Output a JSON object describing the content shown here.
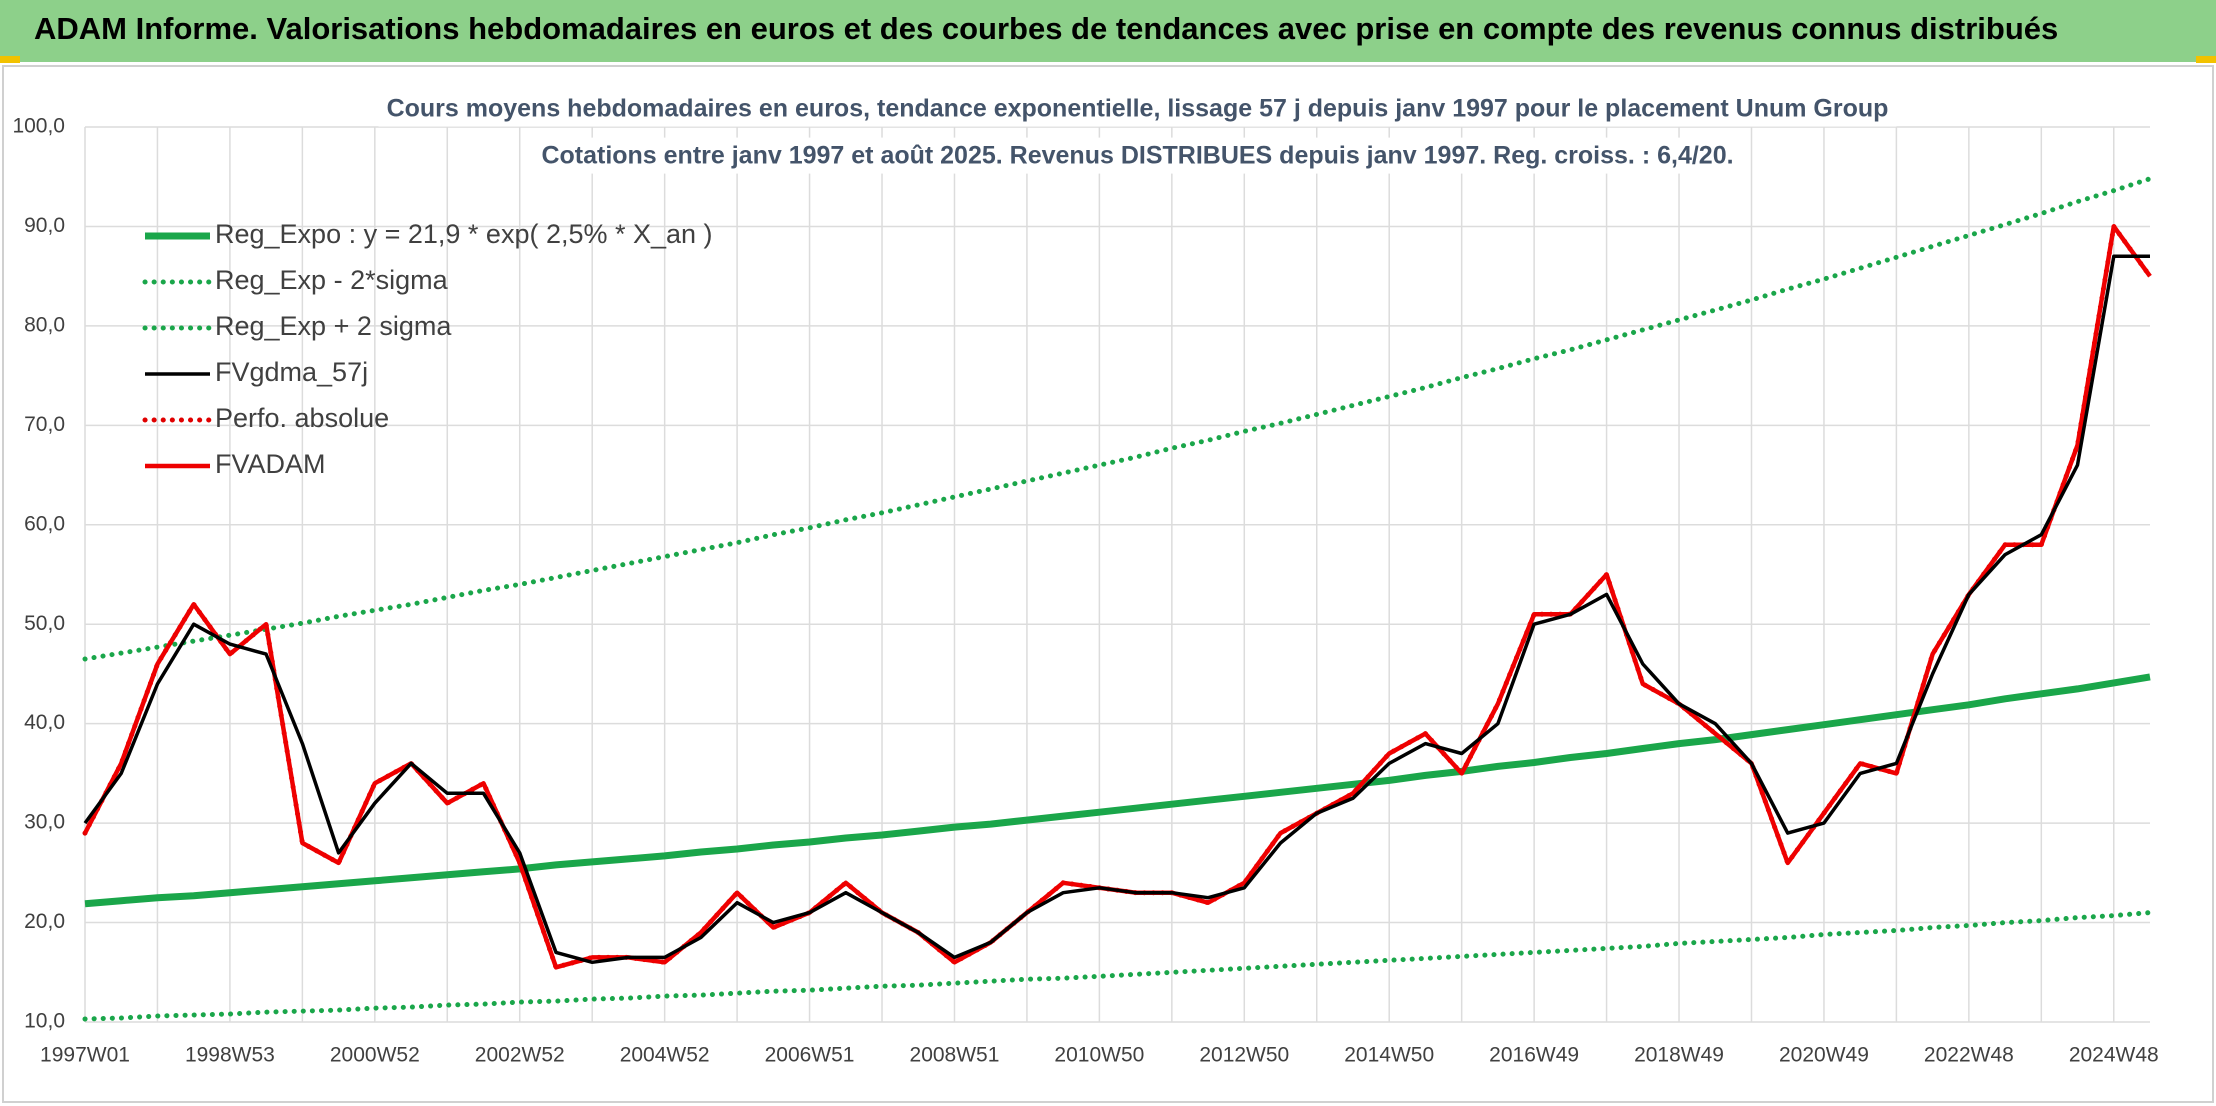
{
  "header": {
    "title": "ADAM Informe. Valorisations hebdomadaires en euros et des courbes de tendances avec prise en compte des revenus connus distribués"
  },
  "chart_data": {
    "type": "line",
    "title": "Cours moyens hebdomadaires en euros, tendance exponentielle, lissage 57 j depuis janv 1997 pour le placement Unum Group",
    "subtitle": "Cotations entre janv 1997 et août 2025. Revenus DISTRIBUES depuis janv 1997. Reg. croiss. : 6,4/20.",
    "categories": [
      "1997W01",
      null,
      null,
      null,
      "1998W53",
      null,
      null,
      null,
      "2000W52",
      null,
      null,
      null,
      "2002W52",
      null,
      null,
      null,
      "2004W52",
      null,
      null,
      null,
      "2006W51",
      null,
      null,
      null,
      "2008W51",
      null,
      null,
      null,
      "2010W50",
      null,
      null,
      null,
      "2012W50",
      null,
      null,
      null,
      "2014W50",
      null,
      null,
      null,
      "2016W49",
      null,
      null,
      null,
      "2018W49",
      null,
      null,
      null,
      "2020W49",
      null,
      null,
      null,
      "2022W48",
      null,
      null,
      null,
      "2024W48",
      null
    ],
    "ylim": [
      10,
      100
    ],
    "yticks": [
      {
        "value": 10,
        "label": "10,0"
      },
      {
        "value": 20,
        "label": "20,0"
      },
      {
        "value": 30,
        "label": "30,0"
      },
      {
        "value": 40,
        "label": "40,0"
      },
      {
        "value": 50,
        "label": "50,0"
      },
      {
        "value": 60,
        "label": "60,0"
      },
      {
        "value": 70,
        "label": "70,0"
      },
      {
        "value": 80,
        "label": "80,0"
      },
      {
        "value": 90,
        "label": "90,0"
      },
      {
        "value": 100,
        "label": "100,0"
      }
    ],
    "grid": true,
    "legend": "top-left",
    "series": [
      {
        "name": "Reg_Expo : y = 21,9 * exp( 2,5% *  X_an )",
        "color": "#1aa64a",
        "line_style": "solid",
        "values": [
          21.9,
          22.2,
          22.5,
          22.7,
          23.0,
          23.3,
          23.6,
          23.9,
          24.2,
          24.5,
          24.8,
          25.1,
          25.4,
          25.8,
          26.1,
          26.4,
          26.7,
          27.1,
          27.4,
          27.8,
          28.1,
          28.5,
          28.8,
          29.2,
          29.6,
          29.9,
          30.3,
          30.7,
          31.1,
          31.5,
          31.9,
          32.3,
          32.7,
          33.1,
          33.5,
          33.9,
          34.3,
          34.8,
          35.2,
          35.7,
          36.1,
          36.6,
          37.0,
          37.5,
          38.0,
          38.4,
          38.9,
          39.4,
          39.9,
          40.4,
          40.9,
          41.4,
          41.9,
          42.5,
          43.0,
          43.5,
          44.1,
          44.7
        ]
      },
      {
        "name": "Reg_Exp - 2*sigma",
        "color": "#1aa64a",
        "line_style": "dotted",
        "values": [
          10.3,
          10.4,
          10.6,
          10.7,
          10.8,
          11.0,
          11.1,
          11.2,
          11.4,
          11.5,
          11.7,
          11.8,
          12.0,
          12.1,
          12.3,
          12.4,
          12.6,
          12.7,
          12.9,
          13.1,
          13.2,
          13.4,
          13.6,
          13.7,
          13.9,
          14.1,
          14.3,
          14.4,
          14.6,
          14.8,
          15.0,
          15.2,
          15.4,
          15.6,
          15.8,
          16.0,
          16.2,
          16.4,
          16.6,
          16.8,
          17.0,
          17.2,
          17.4,
          17.6,
          17.9,
          18.1,
          18.3,
          18.5,
          18.8,
          19.0,
          19.2,
          19.5,
          19.7,
          20.0,
          20.2,
          20.5,
          20.7,
          21.0
        ]
      },
      {
        "name": "Reg_Exp + 2 sigma",
        "color": "#1aa64a",
        "line_style": "dotted",
        "values": [
          46.5,
          47.1,
          47.7,
          48.3,
          48.9,
          49.5,
          50.1,
          50.8,
          51.4,
          52.0,
          52.7,
          53.4,
          54.0,
          54.7,
          55.4,
          56.1,
          56.8,
          57.5,
          58.2,
          59.0,
          59.7,
          60.5,
          61.2,
          62.0,
          62.8,
          63.6,
          64.4,
          65.2,
          66.0,
          66.8,
          67.7,
          68.5,
          69.4,
          70.2,
          71.1,
          72.0,
          72.9,
          73.8,
          74.8,
          75.7,
          76.7,
          77.6,
          78.6,
          79.6,
          80.6,
          81.6,
          82.6,
          83.7,
          84.7,
          85.8,
          86.9,
          88.0,
          89.1,
          90.2,
          91.3,
          92.5,
          93.6,
          94.8
        ]
      },
      {
        "name": "FVgdma_57j",
        "color": "#000000",
        "line_style": "solid",
        "values": [
          30,
          35,
          44,
          50,
          48,
          47,
          38,
          27,
          32,
          36,
          33,
          33,
          27,
          17,
          16,
          16.5,
          16.5,
          18.5,
          22,
          20,
          21,
          23,
          21,
          19,
          16.5,
          18,
          21,
          23,
          23.5,
          23,
          23,
          22.5,
          23.5,
          28,
          31,
          32.5,
          36,
          38,
          37,
          40,
          50,
          51,
          53,
          46,
          42,
          40,
          36,
          29,
          30,
          35,
          36,
          45,
          53,
          57,
          59,
          66,
          87,
          87
        ]
      },
      {
        "name": "Perfo. absolue",
        "color": "#e00000",
        "line_style": "dotted",
        "values": [
          29,
          36,
          46,
          52,
          47,
          50,
          28,
          26,
          34,
          36,
          32,
          34,
          26,
          15.5,
          16.5,
          16.5,
          16,
          19,
          23,
          19.5,
          21,
          24,
          21,
          19,
          16,
          18,
          21,
          24,
          23.5,
          23,
          23,
          22,
          24,
          29,
          31,
          33,
          37,
          39,
          35,
          42,
          51,
          51,
          55,
          44,
          42,
          39,
          36,
          26,
          31,
          36,
          35,
          47,
          53,
          58,
          58,
          68,
          90,
          85
        ]
      },
      {
        "name": "FVADAM",
        "color": "#ee0000",
        "line_style": "solid",
        "values": [
          29,
          36,
          46,
          52,
          47,
          50,
          28,
          26,
          34,
          36,
          32,
          34,
          26,
          15.5,
          16.5,
          16.5,
          16,
          19,
          23,
          19.5,
          21,
          24,
          21,
          19,
          16,
          18,
          21,
          24,
          23.5,
          23,
          23,
          22,
          24,
          29,
          31,
          33,
          37,
          39,
          35,
          42,
          51,
          51,
          55,
          44,
          42,
          39,
          36,
          26,
          31,
          36,
          35,
          47,
          53,
          58,
          58,
          68,
          90,
          85
        ]
      }
    ]
  }
}
